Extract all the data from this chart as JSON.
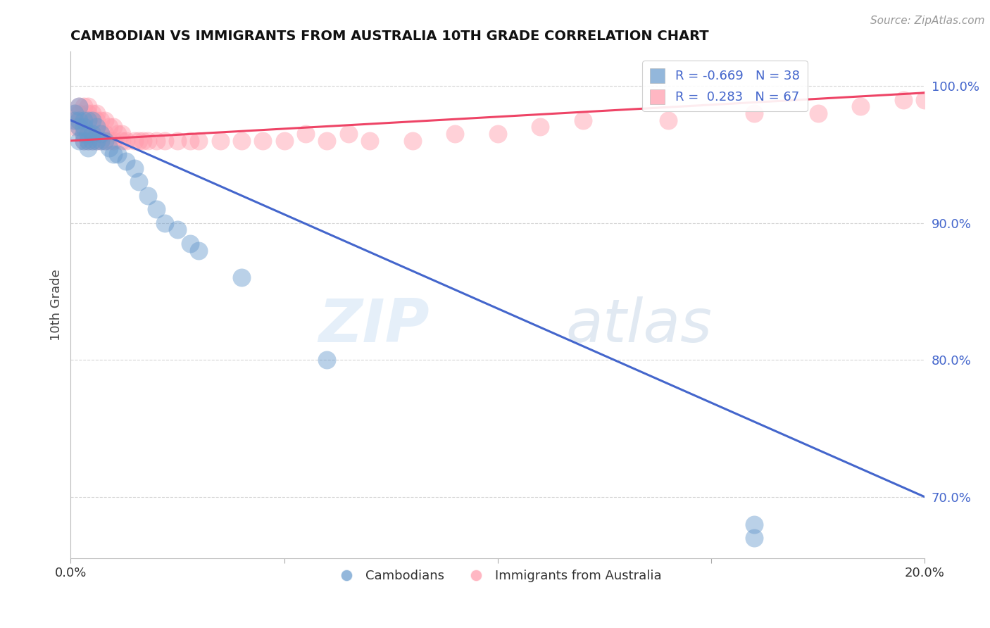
{
  "title": "CAMBODIAN VS IMMIGRANTS FROM AUSTRALIA 10TH GRADE CORRELATION CHART",
  "source_text": "Source: ZipAtlas.com",
  "ylabel": "10th Grade",
  "xlim": [
    0.0,
    0.2
  ],
  "ylim": [
    0.655,
    1.025
  ],
  "xtick_positions": [
    0.0,
    0.05,
    0.1,
    0.15,
    0.2
  ],
  "xtick_labels": [
    "0.0%",
    "",
    "",
    "",
    "20.0%"
  ],
  "ytick_positions": [
    0.7,
    0.8,
    0.9,
    1.0
  ],
  "ytick_labels": [
    "70.0%",
    "80.0%",
    "90.0%",
    "100.0%"
  ],
  "cambodian_R": -0.669,
  "cambodian_N": 38,
  "australia_R": 0.283,
  "australia_N": 67,
  "cambodian_color": "#6699CC",
  "australia_color": "#FF99AA",
  "cambodian_line_color": "#4466CC",
  "australia_line_color": "#EE4466",
  "watermark_zip": "ZIP",
  "watermark_atlas": "atlas",
  "legend_label_1": "Cambodians",
  "legend_label_2": "Immigrants from Australia",
  "cambodian_points_x": [
    0.001,
    0.001,
    0.002,
    0.002,
    0.002,
    0.002,
    0.003,
    0.003,
    0.003,
    0.003,
    0.004,
    0.004,
    0.004,
    0.004,
    0.005,
    0.005,
    0.005,
    0.006,
    0.006,
    0.007,
    0.007,
    0.008,
    0.009,
    0.01,
    0.011,
    0.013,
    0.015,
    0.016,
    0.018,
    0.02,
    0.022,
    0.025,
    0.028,
    0.03,
    0.04,
    0.06,
    0.16,
    0.16
  ],
  "cambodian_points_y": [
    0.98,
    0.975,
    0.985,
    0.975,
    0.97,
    0.96,
    0.975,
    0.97,
    0.965,
    0.96,
    0.975,
    0.965,
    0.96,
    0.955,
    0.975,
    0.965,
    0.96,
    0.97,
    0.96,
    0.965,
    0.96,
    0.96,
    0.955,
    0.95,
    0.95,
    0.945,
    0.94,
    0.93,
    0.92,
    0.91,
    0.9,
    0.895,
    0.885,
    0.88,
    0.86,
    0.8,
    0.68,
    0.67
  ],
  "australia_points_x": [
    0.001,
    0.001,
    0.001,
    0.002,
    0.002,
    0.002,
    0.002,
    0.003,
    0.003,
    0.003,
    0.003,
    0.003,
    0.004,
    0.004,
    0.004,
    0.004,
    0.004,
    0.005,
    0.005,
    0.005,
    0.005,
    0.006,
    0.006,
    0.006,
    0.006,
    0.007,
    0.007,
    0.007,
    0.008,
    0.008,
    0.008,
    0.009,
    0.009,
    0.01,
    0.01,
    0.011,
    0.012,
    0.012,
    0.013,
    0.015,
    0.016,
    0.017,
    0.018,
    0.02,
    0.022,
    0.025,
    0.028,
    0.03,
    0.035,
    0.04,
    0.045,
    0.05,
    0.055,
    0.06,
    0.065,
    0.07,
    0.08,
    0.09,
    0.1,
    0.11,
    0.12,
    0.14,
    0.16,
    0.175,
    0.185,
    0.195,
    0.2
  ],
  "australia_points_y": [
    0.98,
    0.975,
    0.97,
    0.985,
    0.98,
    0.975,
    0.97,
    0.985,
    0.975,
    0.97,
    0.965,
    0.96,
    0.985,
    0.98,
    0.975,
    0.965,
    0.96,
    0.98,
    0.975,
    0.965,
    0.96,
    0.98,
    0.975,
    0.965,
    0.96,
    0.975,
    0.965,
    0.96,
    0.975,
    0.965,
    0.96,
    0.97,
    0.96,
    0.97,
    0.96,
    0.965,
    0.96,
    0.965,
    0.96,
    0.96,
    0.96,
    0.96,
    0.96,
    0.96,
    0.96,
    0.96,
    0.96,
    0.96,
    0.96,
    0.96,
    0.96,
    0.96,
    0.965,
    0.96,
    0.965,
    0.96,
    0.96,
    0.965,
    0.965,
    0.97,
    0.975,
    0.975,
    0.98,
    0.98,
    0.985,
    0.99,
    0.99
  ],
  "blue_line_x": [
    0.0,
    0.2
  ],
  "blue_line_y": [
    0.975,
    0.7
  ],
  "pink_line_x": [
    0.0,
    0.2
  ],
  "pink_line_y": [
    0.96,
    0.995
  ],
  "background_color": "#FFFFFF",
  "grid_color": "#CCCCCC"
}
